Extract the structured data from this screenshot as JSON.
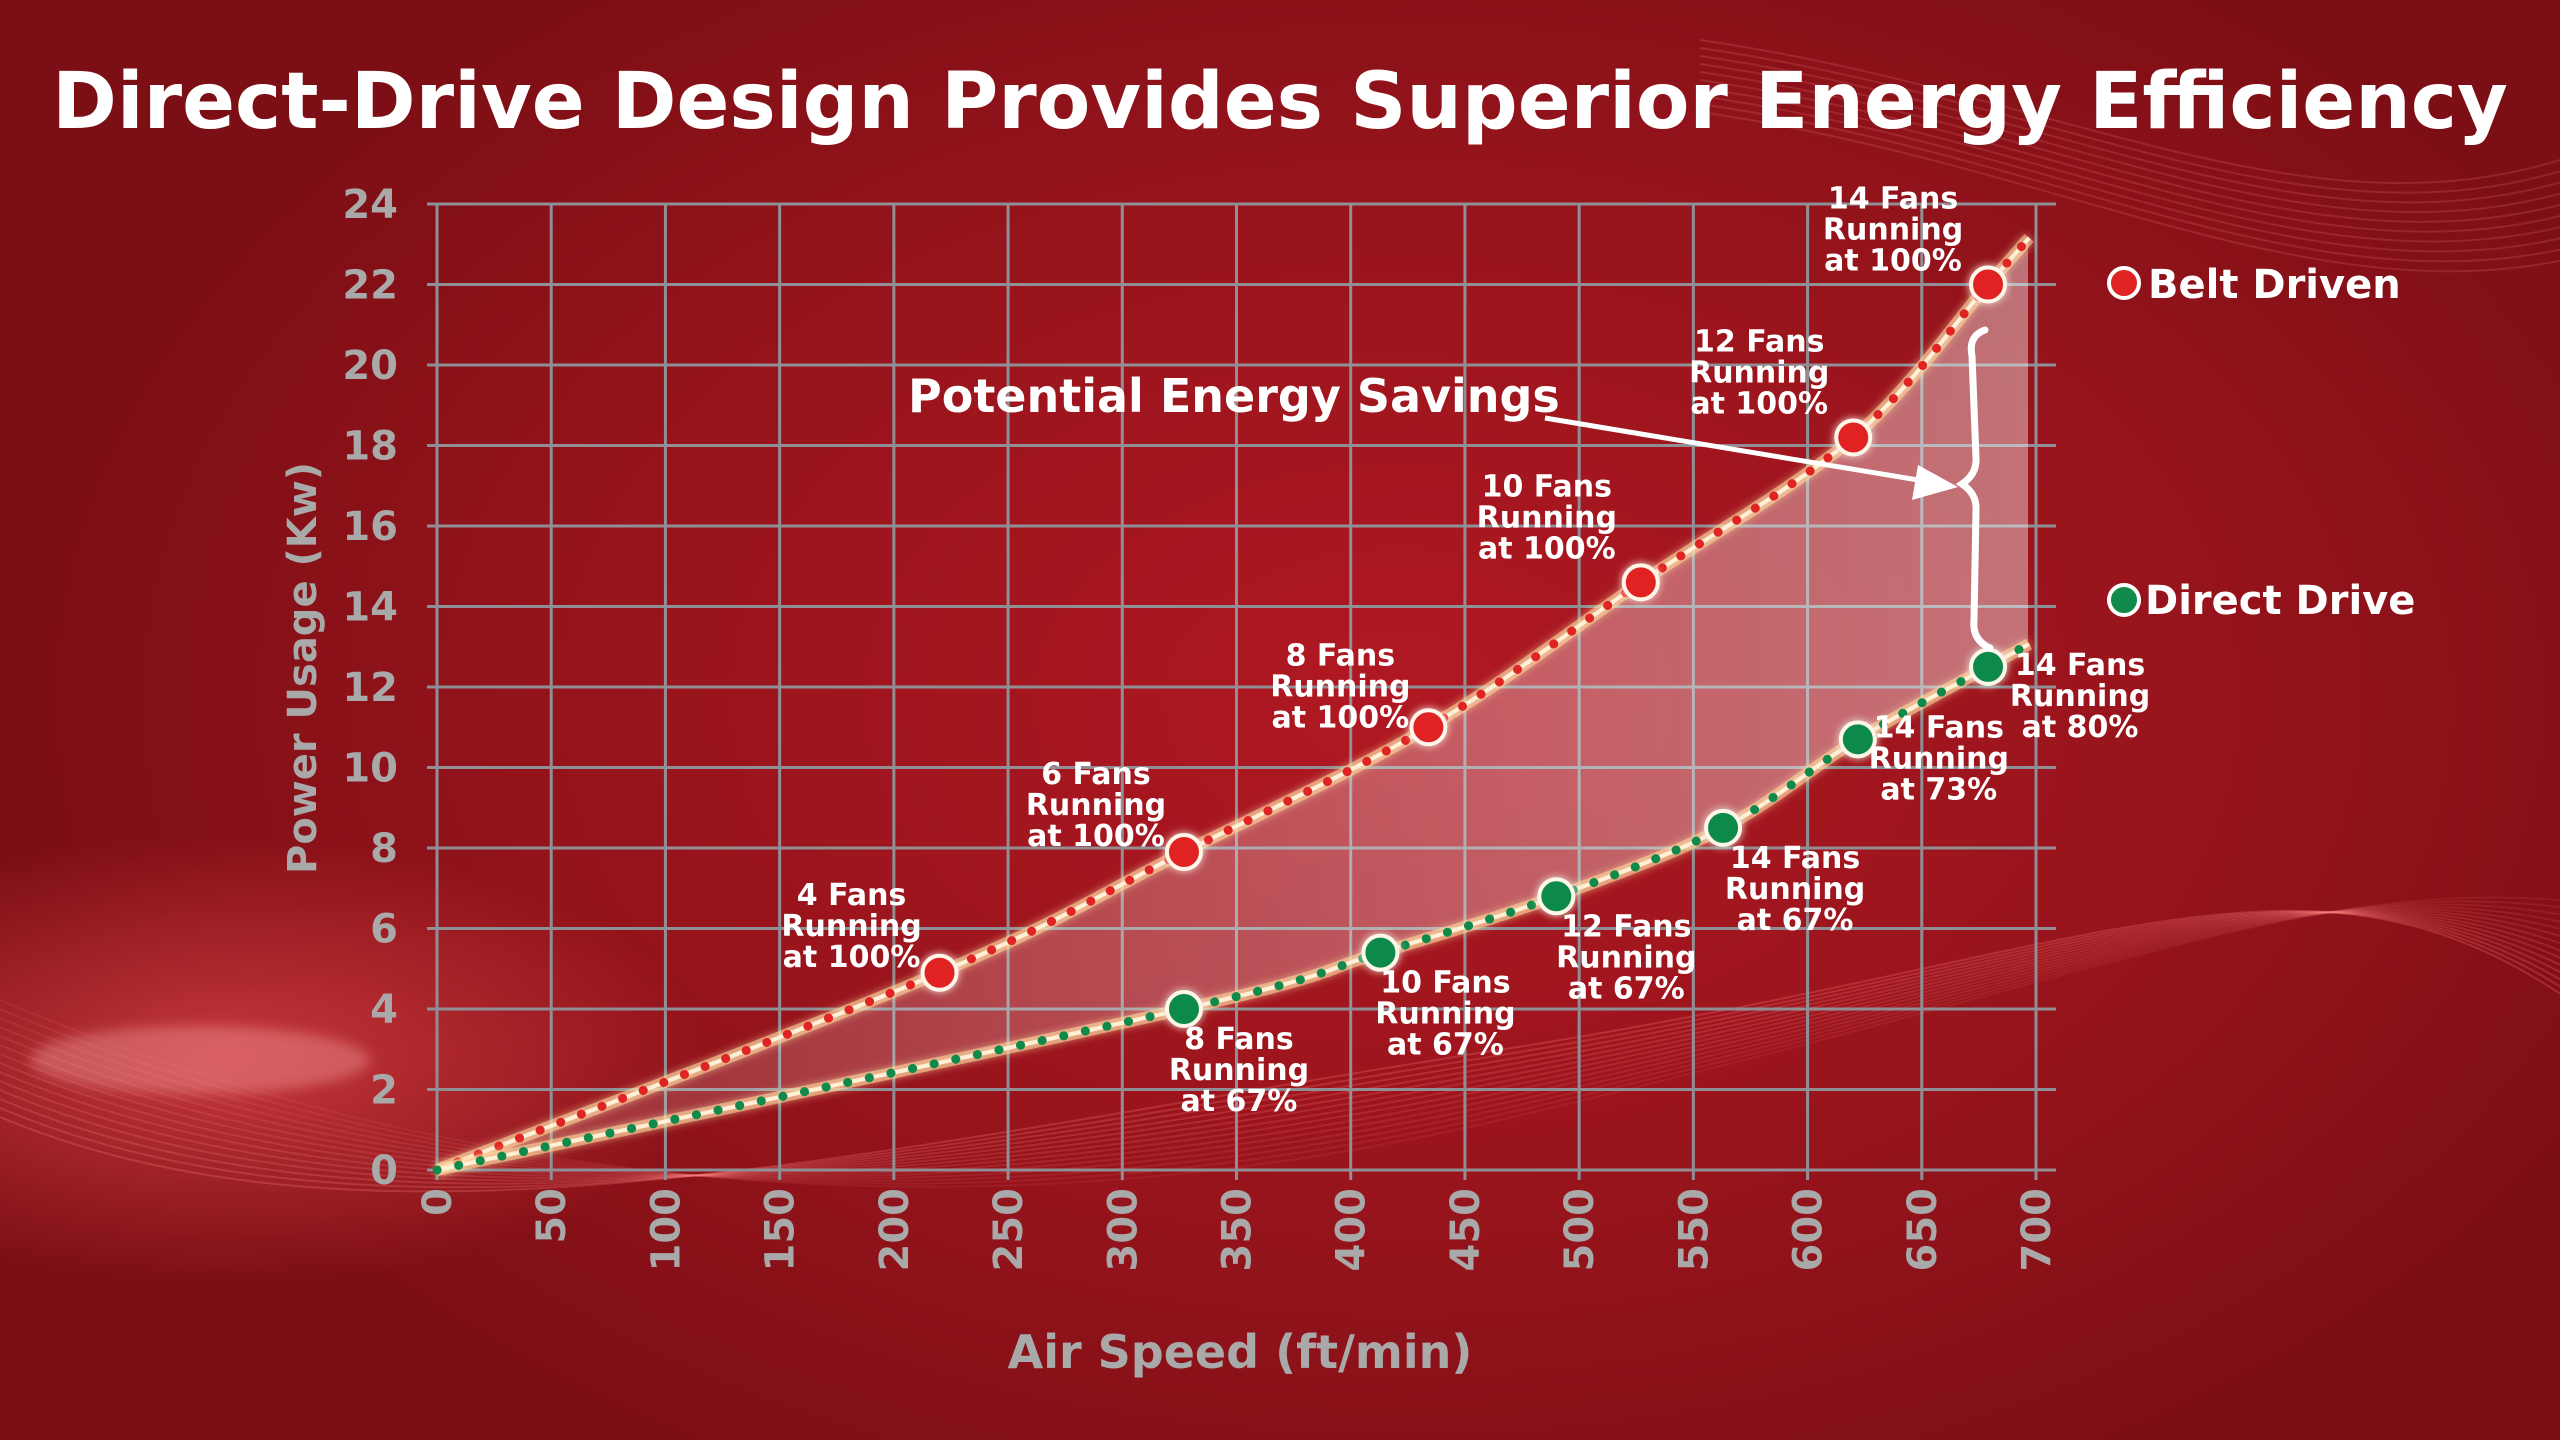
{
  "title": "Direct-Drive Design Provides Superior Energy Efficiency",
  "colors": {
    "belt_driven": "#e02424",
    "direct_drive": "#0f8a4a",
    "grid": "#8f8f95",
    "axis_text": "#a9a9a9",
    "label_text": "#ffffff"
  },
  "chart_data": {
    "type": "line",
    "xlabel": "Air Speed (ft/min)",
    "ylabel": "Power Usage (Kw)",
    "xlim": [
      0,
      700
    ],
    "ylim": [
      0,
      24
    ],
    "x_ticks": [
      "0",
      "50",
      "100",
      "150",
      "200",
      "250",
      "300",
      "350",
      "400",
      "450",
      "500",
      "550",
      "600",
      "650",
      "700"
    ],
    "y_ticks": [
      "0",
      "2",
      "4",
      "6",
      "8",
      "10",
      "12",
      "14",
      "16",
      "18",
      "20",
      "22",
      "24"
    ],
    "grid": true,
    "legend_position": "right",
    "series": [
      {
        "name": "Belt Driven",
        "points": [
          {
            "x": 220,
            "y": 4.9,
            "label": [
              "4 Fans",
              "Running",
              "at 100%"
            ]
          },
          {
            "x": 327,
            "y": 7.9,
            "label": [
              "6 Fans",
              "Running",
              "at 100%"
            ]
          },
          {
            "x": 434,
            "y": 11.0,
            "label": [
              "8 Fans",
              "Running",
              "at 100%"
            ]
          },
          {
            "x": 527,
            "y": 14.6,
            "label": [
              "10 Fans",
              "Running",
              "at 100%"
            ]
          },
          {
            "x": 620,
            "y": 18.2,
            "label": [
              "12 Fans",
              "Running",
              "at 100%"
            ]
          },
          {
            "x": 679,
            "y": 22.0,
            "label": [
              "14 Fans",
              "Running",
              "at 100%"
            ]
          }
        ]
      },
      {
        "name": "Direct Drive",
        "points": [
          {
            "x": 327,
            "y": 4.0,
            "label": [
              "8 Fans",
              "Running",
              "at 67%"
            ]
          },
          {
            "x": 413,
            "y": 5.4,
            "label": [
              "10 Fans",
              "Running",
              "at 67%"
            ]
          },
          {
            "x": 490,
            "y": 6.8,
            "label": [
              "12 Fans",
              "Running",
              "at 67%"
            ]
          },
          {
            "x": 563,
            "y": 8.5,
            "label": [
              "14 Fans",
              "Running",
              "at 67%"
            ]
          },
          {
            "x": 622,
            "y": 10.7,
            "label": [
              "14 Fans",
              "Running",
              "at 73%"
            ]
          },
          {
            "x": 679,
            "y": 12.5,
            "label": [
              "14 Fans",
              "Running",
              "at 80%"
            ]
          }
        ]
      }
    ],
    "annotations": [
      {
        "text": "Potential Energy Savings"
      }
    ]
  }
}
